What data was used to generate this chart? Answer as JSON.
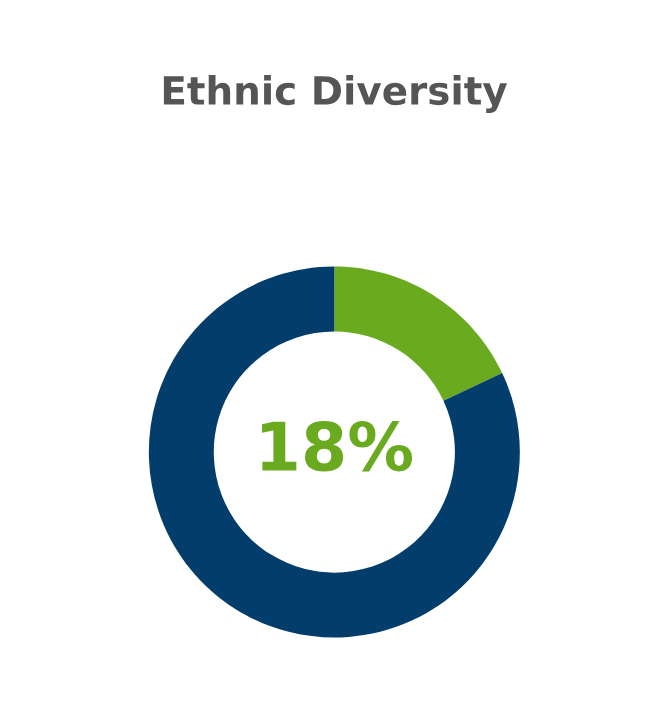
{
  "chart_data": {
    "type": "donut",
    "title": "Ethnic Diversity",
    "categories": [
      null,
      null
    ],
    "values": [
      18,
      82
    ],
    "colors": [
      "#6aaa1e",
      "#033d6b"
    ],
    "value_labels": [
      "18%",
      null
    ]
  }
}
